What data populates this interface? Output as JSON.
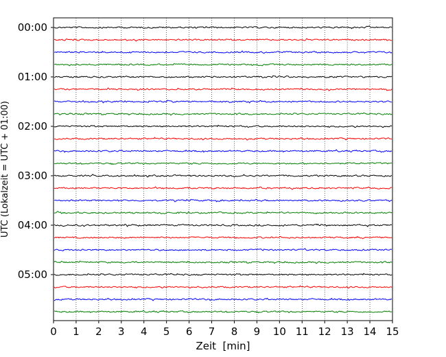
{
  "chart_data": {
    "type": "line",
    "title": "",
    "xlabel": "Zeit  [min]",
    "ylabel": "UTC (Lokalzeit = UTC + 01:00)",
    "xlim": [
      0,
      15
    ],
    "xticks": [
      0,
      1,
      2,
      3,
      4,
      5,
      6,
      7,
      8,
      9,
      10,
      11,
      12,
      13,
      14,
      15
    ],
    "grid": "vertical dotted lines at each minute",
    "trace_interval_minutes": 15,
    "trace_colors": [
      "#000000",
      "#ff0000",
      "#0000ff",
      "#008000"
    ],
    "ylim_hours": [
      0,
      6
    ],
    "ytick_labels": [
      "00:00",
      "01:00",
      "02:00",
      "03:00",
      "04:00",
      "05:00"
    ],
    "ytick_hours": [
      0,
      1,
      2,
      3,
      4,
      5
    ],
    "traces": [
      {
        "start": "00:00",
        "color": "#000000"
      },
      {
        "start": "00:15",
        "color": "#ff0000"
      },
      {
        "start": "00:30",
        "color": "#0000ff"
      },
      {
        "start": "00:45",
        "color": "#008000"
      },
      {
        "start": "01:00",
        "color": "#000000"
      },
      {
        "start": "01:15",
        "color": "#ff0000"
      },
      {
        "start": "01:30",
        "color": "#0000ff"
      },
      {
        "start": "01:45",
        "color": "#008000"
      },
      {
        "start": "02:00",
        "color": "#000000"
      },
      {
        "start": "02:15",
        "color": "#ff0000"
      },
      {
        "start": "02:30",
        "color": "#0000ff"
      },
      {
        "start": "02:45",
        "color": "#008000"
      },
      {
        "start": "03:00",
        "color": "#000000"
      },
      {
        "start": "03:15",
        "color": "#ff0000"
      },
      {
        "start": "03:30",
        "color": "#0000ff"
      },
      {
        "start": "03:45",
        "color": "#008000"
      },
      {
        "start": "04:00",
        "color": "#000000"
      },
      {
        "start": "04:15",
        "color": "#ff0000"
      },
      {
        "start": "04:30",
        "color": "#0000ff"
      },
      {
        "start": "04:45",
        "color": "#008000"
      },
      {
        "start": "05:00",
        "color": "#000000"
      },
      {
        "start": "05:15",
        "color": "#ff0000"
      },
      {
        "start": "05:30",
        "color": "#0000ff"
      },
      {
        "start": "05:45",
        "color": "#008000"
      }
    ]
  }
}
